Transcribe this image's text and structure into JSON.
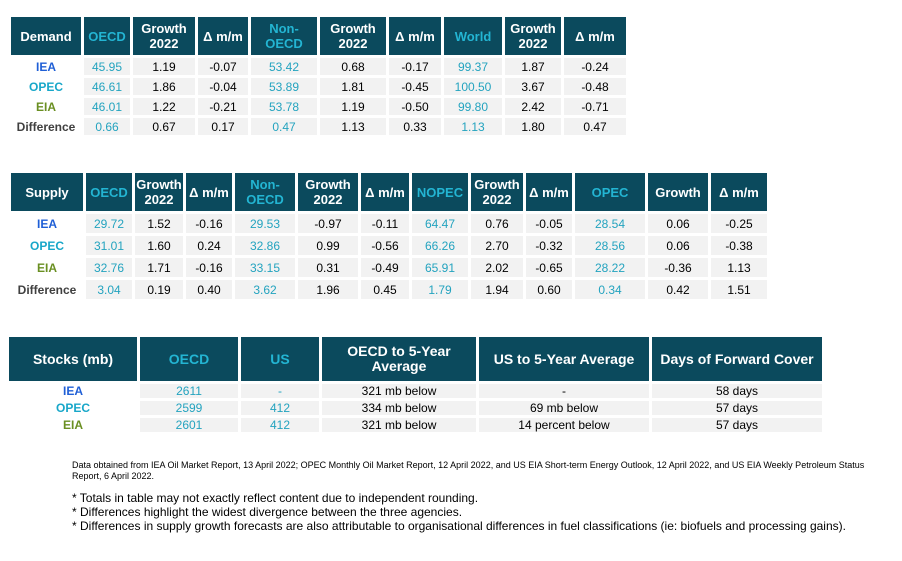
{
  "demand": {
    "headers": [
      "Demand",
      "OECD",
      "Growth 2022",
      "Δ m/m",
      "Non-OECD",
      "Growth 2022",
      "Δ m/m",
      "World",
      "Growth 2022",
      "Δ m/m"
    ],
    "rows": [
      {
        "label": "IEA",
        "cells": [
          "45.95",
          "1.19",
          "-0.07",
          "53.42",
          "0.68",
          "-0.17",
          "99.37",
          "1.87",
          "-0.24"
        ]
      },
      {
        "label": "OPEC",
        "cells": [
          "46.61",
          "1.86",
          "-0.04",
          "53.89",
          "1.81",
          "-0.45",
          "100.50",
          "3.67",
          "-0.48"
        ]
      },
      {
        "label": "EIA",
        "cells": [
          "46.01",
          "1.22",
          "-0.21",
          "53.78",
          "1.19",
          "-0.50",
          "99.80",
          "2.42",
          "-0.71"
        ]
      },
      {
        "label": "Difference",
        "cells": [
          "0.66",
          "0.67",
          "0.17",
          "0.47",
          "1.13",
          "0.33",
          "1.13",
          "1.80",
          "0.47"
        ]
      }
    ]
  },
  "supply": {
    "headers": [
      "Supply",
      "OECD",
      "Growth 2022",
      "Δ m/m",
      "Non-OECD",
      "Growth 2022",
      "Δ m/m",
      "NOPEC",
      "Growth 2022",
      "Δ m/m",
      "OPEC",
      "Growth",
      "Δ m/m"
    ],
    "rows": [
      {
        "label": "IEA",
        "cells": [
          "29.72",
          "1.52",
          "-0.16",
          "29.53",
          "-0.97",
          "-0.11",
          "64.47",
          "0.76",
          "-0.05",
          "28.54",
          "0.06",
          "-0.25"
        ]
      },
      {
        "label": "OPEC",
        "cells": [
          "31.01",
          "1.60",
          "0.24",
          "32.86",
          "0.99",
          "-0.56",
          "66.26",
          "2.70",
          "-0.32",
          "28.56",
          "0.06",
          "-0.38"
        ]
      },
      {
        "label": "EIA",
        "cells": [
          "32.76",
          "1.71",
          "-0.16",
          "33.15",
          "0.31",
          "-0.49",
          "65.91",
          "2.02",
          "-0.65",
          "28.22",
          "-0.36",
          "1.13"
        ]
      },
      {
        "label": "Difference",
        "cells": [
          "3.04",
          "0.19",
          "0.40",
          "3.62",
          "1.96",
          "0.45",
          "1.79",
          "1.94",
          "0.60",
          "0.34",
          "0.42",
          "1.51"
        ]
      }
    ]
  },
  "stocks": {
    "headers": [
      "Stocks (mb)",
      "OECD",
      "US",
      "OECD to 5-Year Average",
      "US to 5-Year Average",
      "Days of Forward Cover"
    ],
    "rows": [
      {
        "label": "IEA",
        "cells": [
          "2611",
          "-",
          "321 mb below",
          "-",
          "58 days"
        ]
      },
      {
        "label": "OPEC",
        "cells": [
          "2599",
          "412",
          "334 mb below",
          "69 mb below",
          "57 days"
        ]
      },
      {
        "label": "EIA",
        "cells": [
          "2601",
          "412",
          "321 mb below",
          "14 percent below",
          "57 days"
        ]
      }
    ]
  },
  "source_note": "Data obtained from IEA Oil Market Report, 13 April 2022; OPEC Monthly Oil Market Report, 12 April 2022, and US EIA Short-term Energy Outlook, 12 April 2022, and US EIA Weekly Petroleum Status Report, 6 April 2022.",
  "footnotes": [
    "* Totals in table may not exactly reflect content due to independent rounding.",
    "* Differences highlight the widest divergence between the three agencies.",
    "* Differences in supply growth forecasts are also attributable to organisational differences in fuel classifications (ie: biofuels and processing gains)."
  ],
  "colors": {
    "header_bg": "#0b4a5d",
    "header_accent": "#23b5d3",
    "cell_bg": "#f2f2f2",
    "iea_label": "#1f5fd6",
    "opec_label": "#18a7c9",
    "eia_label": "#6a8f22"
  }
}
